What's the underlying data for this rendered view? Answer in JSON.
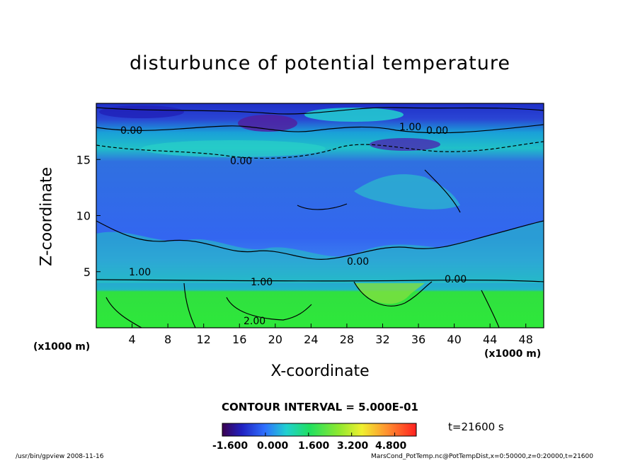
{
  "chart_data": {
    "type": "heatmap",
    "title": "disturbunce of potential temperature",
    "xlabel": "X-coordinate",
    "ylabel": "Z-coordinate",
    "x_unit_left": "(x1000 m)",
    "x_unit_right": "(x1000 m)",
    "xlim": [
      0,
      50
    ],
    "ylim": [
      0,
      20
    ],
    "x_ticks": [
      "4",
      "8",
      "12",
      "16",
      "20",
      "24",
      "28",
      "32",
      "36",
      "40",
      "44",
      "48"
    ],
    "y_ticks": [
      "5",
      "10",
      "15"
    ],
    "contour_labels": [
      "0.00",
      "0.00",
      "1.00",
      "0.00",
      "0.00",
      "1.00",
      "0.00",
      "1.00",
      "2.00"
    ],
    "contour_interval_text": "CONTOUR INTERVAL = 5.000E-01",
    "colorbar": {
      "range": [
        -1.6,
        5.6
      ],
      "tick_labels": [
        "-1.600",
        "0.000",
        "1.600",
        "3.200",
        "4.800"
      ]
    },
    "time_label": "t=21600 s",
    "footer_left": "/usr/bin/gpview   2008-11-16",
    "footer_right": "MarsCond_PotTemp.nc@PotTempDist,x=0:50000,z=0:20000,t=21600"
  }
}
